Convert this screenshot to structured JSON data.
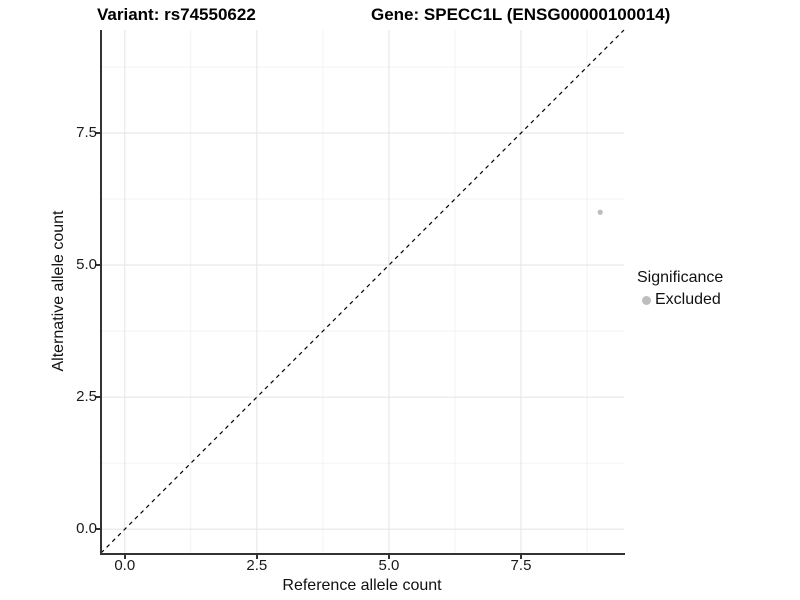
{
  "titles": {
    "variant": "Variant: rs74550622",
    "gene": "Gene: SPECC1L (ENSG00000100014)"
  },
  "legend": {
    "title": "Significance",
    "items": [
      {
        "label": "Excluded",
        "color": "#bdbdbd"
      }
    ]
  },
  "chart_data": {
    "type": "scatter",
    "title": "Variant: rs74550622  Gene: SPECC1L (ENSG00000100014)",
    "xlabel": "Reference allele count",
    "ylabel": "Alternative allele count",
    "xlim": [
      -0.45,
      9.45
    ],
    "ylim": [
      -0.45,
      9.45
    ],
    "x_major_ticks": [
      0,
      2.5,
      5,
      7.5
    ],
    "x_tick_labels": [
      "0.0",
      "2.5",
      "5.0",
      "7.5"
    ],
    "y_major_ticks": [
      0,
      2.5,
      5,
      7.5
    ],
    "y_tick_labels": [
      "0.0",
      "2.5",
      "5.0",
      "7.5"
    ],
    "x_minor_gridlines": [
      1.25,
      3.75,
      6.25,
      8.75
    ],
    "y_minor_gridlines": [
      1.25,
      3.75,
      6.25,
      8.75
    ],
    "grid": true,
    "legend_position": "right",
    "series": [
      {
        "name": "Excluded",
        "color": "#bdbdbd",
        "points": [
          {
            "x": 9,
            "y": 6
          }
        ]
      }
    ],
    "reference_line": {
      "slope": 1,
      "intercept": 0,
      "style": "dashed",
      "color": "#000000"
    },
    "colors": {
      "grid_major": "#e6e6e6",
      "grid_minor": "#f2f2f2",
      "axis_line": "#333333",
      "point": "#bdbdbd"
    }
  }
}
